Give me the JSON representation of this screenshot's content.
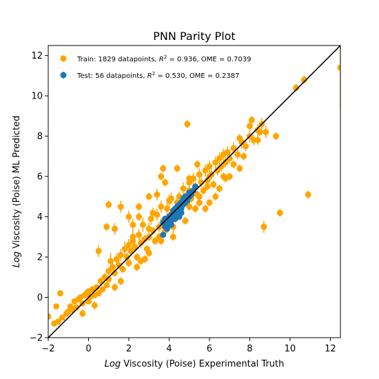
{
  "chart_data": {
    "type": "scatter",
    "title": "PNN Parity Plot",
    "xlabel_prefix": "Log",
    "xlabel_rest": " Viscosity (Poise) Experimental Truth",
    "ylabel_prefix": "Log",
    "ylabel_rest": " Viscosity (Poise) ML Predicted",
    "xlim": [
      -2,
      12.5
    ],
    "ylim": [
      -2,
      12.5
    ],
    "xticks": [
      -2,
      0,
      2,
      4,
      6,
      8,
      10,
      12
    ],
    "yticks": [
      -2,
      0,
      2,
      4,
      6,
      8,
      10,
      12
    ],
    "xtick_labels": [
      "−2",
      "0",
      "2",
      "4",
      "6",
      "8",
      "10",
      "12"
    ],
    "ytick_labels": [
      "−2",
      "0",
      "2",
      "4",
      "6",
      "8",
      "10",
      "12"
    ],
    "grid": false,
    "legend_position": "top-left",
    "parity_line": {
      "from": [
        -2,
        -2
      ],
      "to": [
        12.5,
        12.5
      ],
      "color": "#000000"
    },
    "series": [
      {
        "name": "Train",
        "legend": {
          "lead": "Train: 1829 datapoints, ",
          "r2_r": "R",
          "r2_sup": "2",
          "tail": " = 0.936, OME = 0.7039"
        },
        "color": "#ffa500",
        "points": [
          [
            -2.0,
            -0.95,
            0.2
          ],
          [
            -1.7,
            -1.3,
            0.15
          ],
          [
            -1.6,
            -0.45,
            0.1
          ],
          [
            -1.5,
            -1.2,
            0.15
          ],
          [
            -1.4,
            0.2,
            0.1
          ],
          [
            -1.3,
            -1.0,
            0.1
          ],
          [
            -1.1,
            -0.8,
            0.15
          ],
          [
            -1.0,
            -0.7,
            0.1
          ],
          [
            -0.9,
            -0.45,
            0.1
          ],
          [
            -0.8,
            -0.6,
            0.1
          ],
          [
            -0.7,
            -0.2,
            0.15
          ],
          [
            -0.6,
            -0.5,
            0.1
          ],
          [
            -0.5,
            -0.1,
            0.1
          ],
          [
            -0.4,
            0.0,
            0.15
          ],
          [
            -0.3,
            -0.3,
            0.1
          ],
          [
            -0.2,
            0.1,
            0.1
          ],
          [
            -0.1,
            0.2,
            0.15
          ],
          [
            0.0,
            -0.2,
            0.1
          ],
          [
            0.0,
            0.3,
            0.1
          ],
          [
            0.1,
            0.05,
            0.1
          ],
          [
            0.2,
            0.4,
            0.15
          ],
          [
            0.3,
            0.1,
            0.1
          ],
          [
            0.4,
            0.5,
            0.15
          ],
          [
            0.5,
            0.2,
            0.1
          ],
          [
            0.6,
            0.8,
            0.2
          ],
          [
            0.7,
            0.4,
            0.15
          ],
          [
            0.8,
            1.0,
            0.2
          ],
          [
            0.9,
            0.6,
            0.1
          ],
          [
            1.0,
            1.3,
            0.2
          ],
          [
            1.0,
            0.9,
            0.15
          ],
          [
            1.1,
            1.8,
            0.4
          ],
          [
            1.2,
            1.5,
            0.2
          ],
          [
            1.3,
            1.2,
            0.15
          ],
          [
            1.4,
            1.9,
            0.3
          ],
          [
            1.5,
            1.6,
            0.2
          ],
          [
            1.6,
            2.1,
            0.3
          ],
          [
            1.7,
            1.4,
            0.2
          ],
          [
            1.8,
            2.4,
            0.4
          ],
          [
            1.9,
            2.0,
            0.2
          ],
          [
            2.0,
            2.6,
            0.3
          ],
          [
            2.0,
            1.7,
            0.2
          ],
          [
            2.1,
            2.3,
            0.25
          ],
          [
            2.2,
            3.0,
            0.35
          ],
          [
            2.3,
            2.5,
            0.2
          ],
          [
            2.4,
            2.0,
            0.2
          ],
          [
            2.5,
            3.1,
            0.3
          ],
          [
            2.6,
            2.7,
            0.25
          ],
          [
            2.7,
            3.6,
            0.35
          ],
          [
            2.8,
            2.9,
            0.2
          ],
          [
            2.9,
            2.4,
            0.2
          ],
          [
            3.0,
            3.4,
            0.3
          ],
          [
            3.0,
            3.0,
            0.2
          ],
          [
            3.1,
            3.9,
            0.3
          ],
          [
            3.2,
            3.3,
            0.2
          ],
          [
            3.3,
            2.8,
            0.2
          ],
          [
            3.4,
            4.1,
            0.3
          ],
          [
            3.5,
            3.5,
            0.25
          ],
          [
            3.6,
            4.5,
            0.3
          ],
          [
            3.7,
            3.8,
            0.2
          ],
          [
            3.8,
            3.3,
            0.2
          ],
          [
            3.9,
            4.4,
            0.3
          ],
          [
            4.0,
            4.0,
            0.25
          ],
          [
            4.1,
            4.9,
            0.3
          ],
          [
            4.2,
            4.3,
            0.2
          ],
          [
            4.3,
            3.9,
            0.2
          ],
          [
            4.4,
            4.7,
            0.3
          ],
          [
            4.5,
            5.0,
            0.25
          ],
          [
            4.6,
            4.5,
            0.2
          ],
          [
            4.7,
            5.4,
            0.3
          ],
          [
            4.8,
            5.0,
            0.25
          ],
          [
            4.9,
            4.7,
            0.2
          ],
          [
            5.0,
            5.7,
            0.3
          ],
          [
            5.0,
            5.3,
            0.25
          ],
          [
            5.1,
            4.9,
            0.2
          ],
          [
            5.2,
            5.9,
            0.3
          ],
          [
            5.3,
            5.5,
            0.25
          ],
          [
            5.4,
            5.1,
            0.2
          ],
          [
            5.5,
            6.1,
            0.3
          ],
          [
            5.6,
            5.7,
            0.25
          ],
          [
            5.7,
            5.3,
            0.2
          ],
          [
            5.8,
            6.3,
            0.3
          ],
          [
            5.9,
            5.8,
            0.25
          ],
          [
            6.0,
            6.5,
            0.3
          ],
          [
            6.1,
            6.1,
            0.25
          ],
          [
            6.2,
            5.6,
            0.2
          ],
          [
            6.3,
            6.7,
            0.3
          ],
          [
            6.4,
            6.3,
            0.25
          ],
          [
            6.5,
            6.9,
            0.3
          ],
          [
            6.6,
            6.5,
            0.25
          ],
          [
            6.7,
            7.1,
            0.3
          ],
          [
            6.8,
            6.7,
            0.25
          ],
          [
            6.9,
            7.2,
            0.3
          ],
          [
            7.0,
            6.9,
            0.25
          ],
          [
            7.2,
            7.4,
            0.3
          ],
          [
            7.4,
            7.1,
            0.25
          ],
          [
            7.6,
            7.7,
            0.3
          ],
          [
            7.8,
            7.5,
            0.25
          ],
          [
            8.0,
            8.0,
            0.3
          ],
          [
            8.2,
            7.8,
            0.25
          ],
          [
            8.4,
            8.3,
            0.3
          ],
          [
            8.6,
            8.6,
            0.3
          ],
          [
            8.8,
            8.2,
            0.3
          ],
          [
            8.0,
            8.5,
            0.25
          ],
          [
            8.4,
            7.8,
            0.25
          ],
          [
            8.5,
            8.2,
            0.2
          ],
          [
            8.1,
            8.8,
            0.2
          ],
          [
            7.5,
            7.9,
            0.2
          ],
          [
            6.0,
            6.0,
            0.2
          ],
          [
            5.5,
            5.0,
            0.2
          ],
          [
            5.9,
            5.5,
            0.2
          ],
          [
            5.0,
            4.5,
            0.2
          ],
          [
            4.5,
            4.3,
            0.2
          ],
          [
            3.5,
            3.0,
            0.2
          ],
          [
            4.2,
            3.5,
            0.3
          ],
          [
            3.0,
            2.2,
            0.2
          ],
          [
            2.4,
            1.5,
            0.2
          ],
          [
            1.6,
            0.8,
            0.2
          ],
          [
            2.5,
            4.0,
            0.2
          ],
          [
            2.5,
            4.5,
            0.2
          ],
          [
            2.0,
            4.0,
            0.3
          ],
          [
            3.0,
            5.0,
            0.2
          ],
          [
            3.4,
            5.1,
            0.3
          ],
          [
            3.8,
            5.7,
            0.2
          ],
          [
            3.6,
            6.0,
            0.2
          ],
          [
            4.4,
            6.4,
            0.2
          ],
          [
            5.4,
            6.6,
            0.2
          ],
          [
            6.0,
            4.7,
            0.2
          ],
          [
            6.3,
            5.0,
            0.2
          ],
          [
            6.5,
            5.4,
            0.2
          ],
          [
            7.0,
            6.0,
            0.2
          ],
          [
            7.5,
            6.4,
            0.2
          ],
          [
            5.8,
            4.4,
            0.2
          ],
          [
            4.8,
            3.8,
            0.2
          ],
          [
            2.8,
            1.9,
            0.2
          ],
          [
            1.0,
            4.6,
            0.2
          ],
          [
            0.9,
            3.5,
            0.2
          ],
          [
            0.5,
            2.3,
            0.3
          ],
          [
            1.3,
            3.4,
            0.3
          ],
          [
            1.6,
            4.5,
            0.3
          ],
          [
            2.2,
            3.6,
            0.3
          ],
          [
            4.9,
            8.6,
            0.2
          ],
          [
            8.7,
            3.5,
            0.3
          ],
          [
            9.3,
            8.0,
            0.2
          ],
          [
            9.5,
            4.2,
            0.2
          ],
          [
            10.3,
            10.4,
            0.2
          ],
          [
            10.7,
            10.8,
            0.2
          ],
          [
            10.9,
            5.1,
            0.2
          ],
          [
            12.5,
            11.4,
            2.1
          ],
          [
            3.7,
            6.4,
            0.2
          ],
          [
            5.0,
            5.9,
            0.2
          ],
          [
            5.3,
            4.4,
            0.2
          ],
          [
            4.2,
            3.0,
            0.2
          ],
          [
            3.2,
            4.2,
            0.25
          ],
          [
            6.7,
            6.0,
            0.2
          ],
          [
            7.2,
            6.6,
            0.2
          ],
          [
            7.7,
            7.0,
            0.2
          ],
          [
            1.3,
            0.5,
            0.2
          ],
          [
            0.3,
            -0.4,
            0.2
          ],
          [
            -0.3,
            -0.8,
            0.2
          ],
          [
            2.6,
            1.8,
            0.2
          ],
          [
            3.6,
            2.8,
            0.2
          ],
          [
            5.5,
            4.7,
            0.2
          ],
          [
            6.8,
            5.9,
            0.2
          ],
          [
            2.2,
            2.8,
            0.3
          ],
          [
            4.0,
            4.8,
            0.3
          ]
        ]
      },
      {
        "name": "Test",
        "legend": {
          "lead": "Test: 56 datapoints, ",
          "r2_r": "R",
          "r2_sup": "2",
          "tail": " = 0.530, OME = 0.2387"
        },
        "color": "#1f77b4",
        "points": [
          [
            3.7,
            3.1,
            0.1
          ],
          [
            3.7,
            3.7,
            0.1
          ],
          [
            3.8,
            3.5,
            0.1
          ],
          [
            3.8,
            3.9,
            0.1
          ],
          [
            3.9,
            3.4,
            0.1
          ],
          [
            3.9,
            3.8,
            0.1
          ],
          [
            4.0,
            3.6,
            0.1
          ],
          [
            4.0,
            4.0,
            0.1
          ],
          [
            4.1,
            3.8,
            0.1
          ],
          [
            4.1,
            4.1,
            0.1
          ],
          [
            4.2,
            3.9,
            0.1
          ],
          [
            4.2,
            4.3,
            0.1
          ],
          [
            4.3,
            4.0,
            0.1
          ],
          [
            4.3,
            4.4,
            0.1
          ],
          [
            4.4,
            4.2,
            0.1
          ],
          [
            4.4,
            4.5,
            0.1
          ],
          [
            4.5,
            4.3,
            0.1
          ],
          [
            4.5,
            4.6,
            0.1
          ],
          [
            4.6,
            4.4,
            0.1
          ],
          [
            4.6,
            4.7,
            0.1
          ],
          [
            4.7,
            4.6,
            0.1
          ],
          [
            4.7,
            4.9,
            0.1
          ],
          [
            4.8,
            4.7,
            0.1
          ],
          [
            4.8,
            5.0,
            0.1
          ],
          [
            4.9,
            4.8,
            0.1
          ],
          [
            5.0,
            5.0,
            0.1
          ],
          [
            5.0,
            5.2,
            0.1
          ],
          [
            5.1,
            5.1,
            0.1
          ],
          [
            5.2,
            5.3,
            0.1
          ],
          [
            5.3,
            5.5,
            0.1
          ],
          [
            4.1,
            3.6,
            0.1
          ],
          [
            4.3,
            3.9,
            0.1
          ],
          [
            4.5,
            4.0,
            0.1
          ],
          [
            4.6,
            4.2,
            0.1
          ]
        ]
      }
    ]
  }
}
